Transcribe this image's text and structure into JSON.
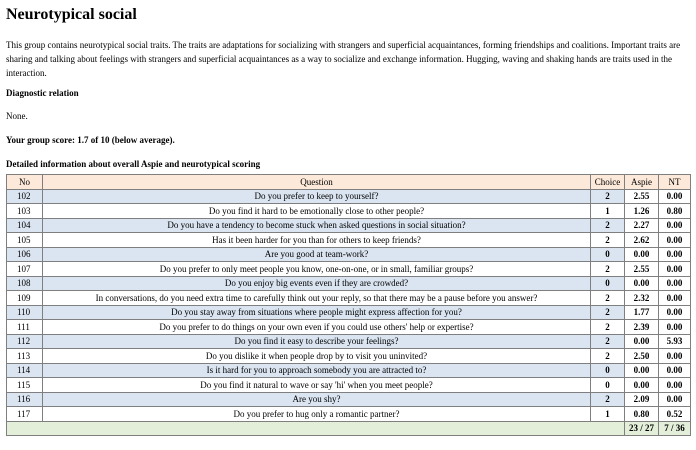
{
  "title": "Neurotypical social",
  "intro": "This group contains neurotypical social traits. The traits are adaptations for socializing with strangers and superficial acquaintances, forming friendships and coalitions. Important traits are sharing and talking about feelings with strangers and superficial acquaintances as a way to socialize and exchange information. Hugging, waving and shaking hands are traits used in the interaction.",
  "diagnostic_heading": "Diagnostic relation",
  "diagnostic_value": "None.",
  "score_text": "Your group score: 1.7 of 10 (below average).",
  "detail_heading": "Detailed information about overall Aspie and neurotypical scoring",
  "table": {
    "headers": [
      "No",
      "Question",
      "Choice",
      "Aspie",
      "NT"
    ],
    "rows": [
      {
        "no": "102",
        "question": "Do you prefer to keep to yourself?",
        "choice": "2",
        "aspie": "2.55",
        "nt": "0.00"
      },
      {
        "no": "103",
        "question": "Do you find it hard to be emotionally close to other people?",
        "choice": "1",
        "aspie": "1.26",
        "nt": "0.80"
      },
      {
        "no": "104",
        "question": "Do you have a tendency to become stuck when asked questions in social situation?",
        "choice": "2",
        "aspie": "2.27",
        "nt": "0.00"
      },
      {
        "no": "105",
        "question": "Has it been harder for you than for others to keep friends?",
        "choice": "2",
        "aspie": "2.62",
        "nt": "0.00"
      },
      {
        "no": "106",
        "question": "Are you good at team-work?",
        "choice": "0",
        "aspie": "0.00",
        "nt": "0.00"
      },
      {
        "no": "107",
        "question": "Do you prefer to only meet people you know, one-on-one, or in small, familiar groups?",
        "choice": "2",
        "aspie": "2.55",
        "nt": "0.00"
      },
      {
        "no": "108",
        "question": "Do you enjoy big events even if they are crowded?",
        "choice": "0",
        "aspie": "0.00",
        "nt": "0.00"
      },
      {
        "no": "109",
        "question": "In conversations, do you need extra time to carefully think out your reply, so that there may be a pause before you answer?",
        "choice": "2",
        "aspie": "2.32",
        "nt": "0.00"
      },
      {
        "no": "110",
        "question": "Do you stay away from situations where people might express affection for you?",
        "choice": "2",
        "aspie": "1.77",
        "nt": "0.00"
      },
      {
        "no": "111",
        "question": "Do you prefer to do things on your own even if you could use others' help or expertise?",
        "choice": "2",
        "aspie": "2.39",
        "nt": "0.00"
      },
      {
        "no": "112",
        "question": "Do you find it easy to describe your feelings?",
        "choice": "2",
        "aspie": "0.00",
        "nt": "5.93"
      },
      {
        "no": "113",
        "question": "Do you dislike it when people drop by to visit you uninvited?",
        "choice": "2",
        "aspie": "2.50",
        "nt": "0.00"
      },
      {
        "no": "114",
        "question": "Is it hard for you to approach somebody you are attracted to?",
        "choice": "0",
        "aspie": "0.00",
        "nt": "0.00"
      },
      {
        "no": "115",
        "question": "Do you find it natural to wave or say 'hi' when you meet people?",
        "choice": "0",
        "aspie": "0.00",
        "nt": "0.00"
      },
      {
        "no": "116",
        "question": "Are you shy?",
        "choice": "2",
        "aspie": "2.09",
        "nt": "0.00"
      },
      {
        "no": "117",
        "question": "Do you prefer to hug only a romantic partner?",
        "choice": "1",
        "aspie": "0.80",
        "nt": "0.52"
      }
    ],
    "totals": {
      "aspie": "23 / 27",
      "nt": "7 / 36"
    }
  }
}
